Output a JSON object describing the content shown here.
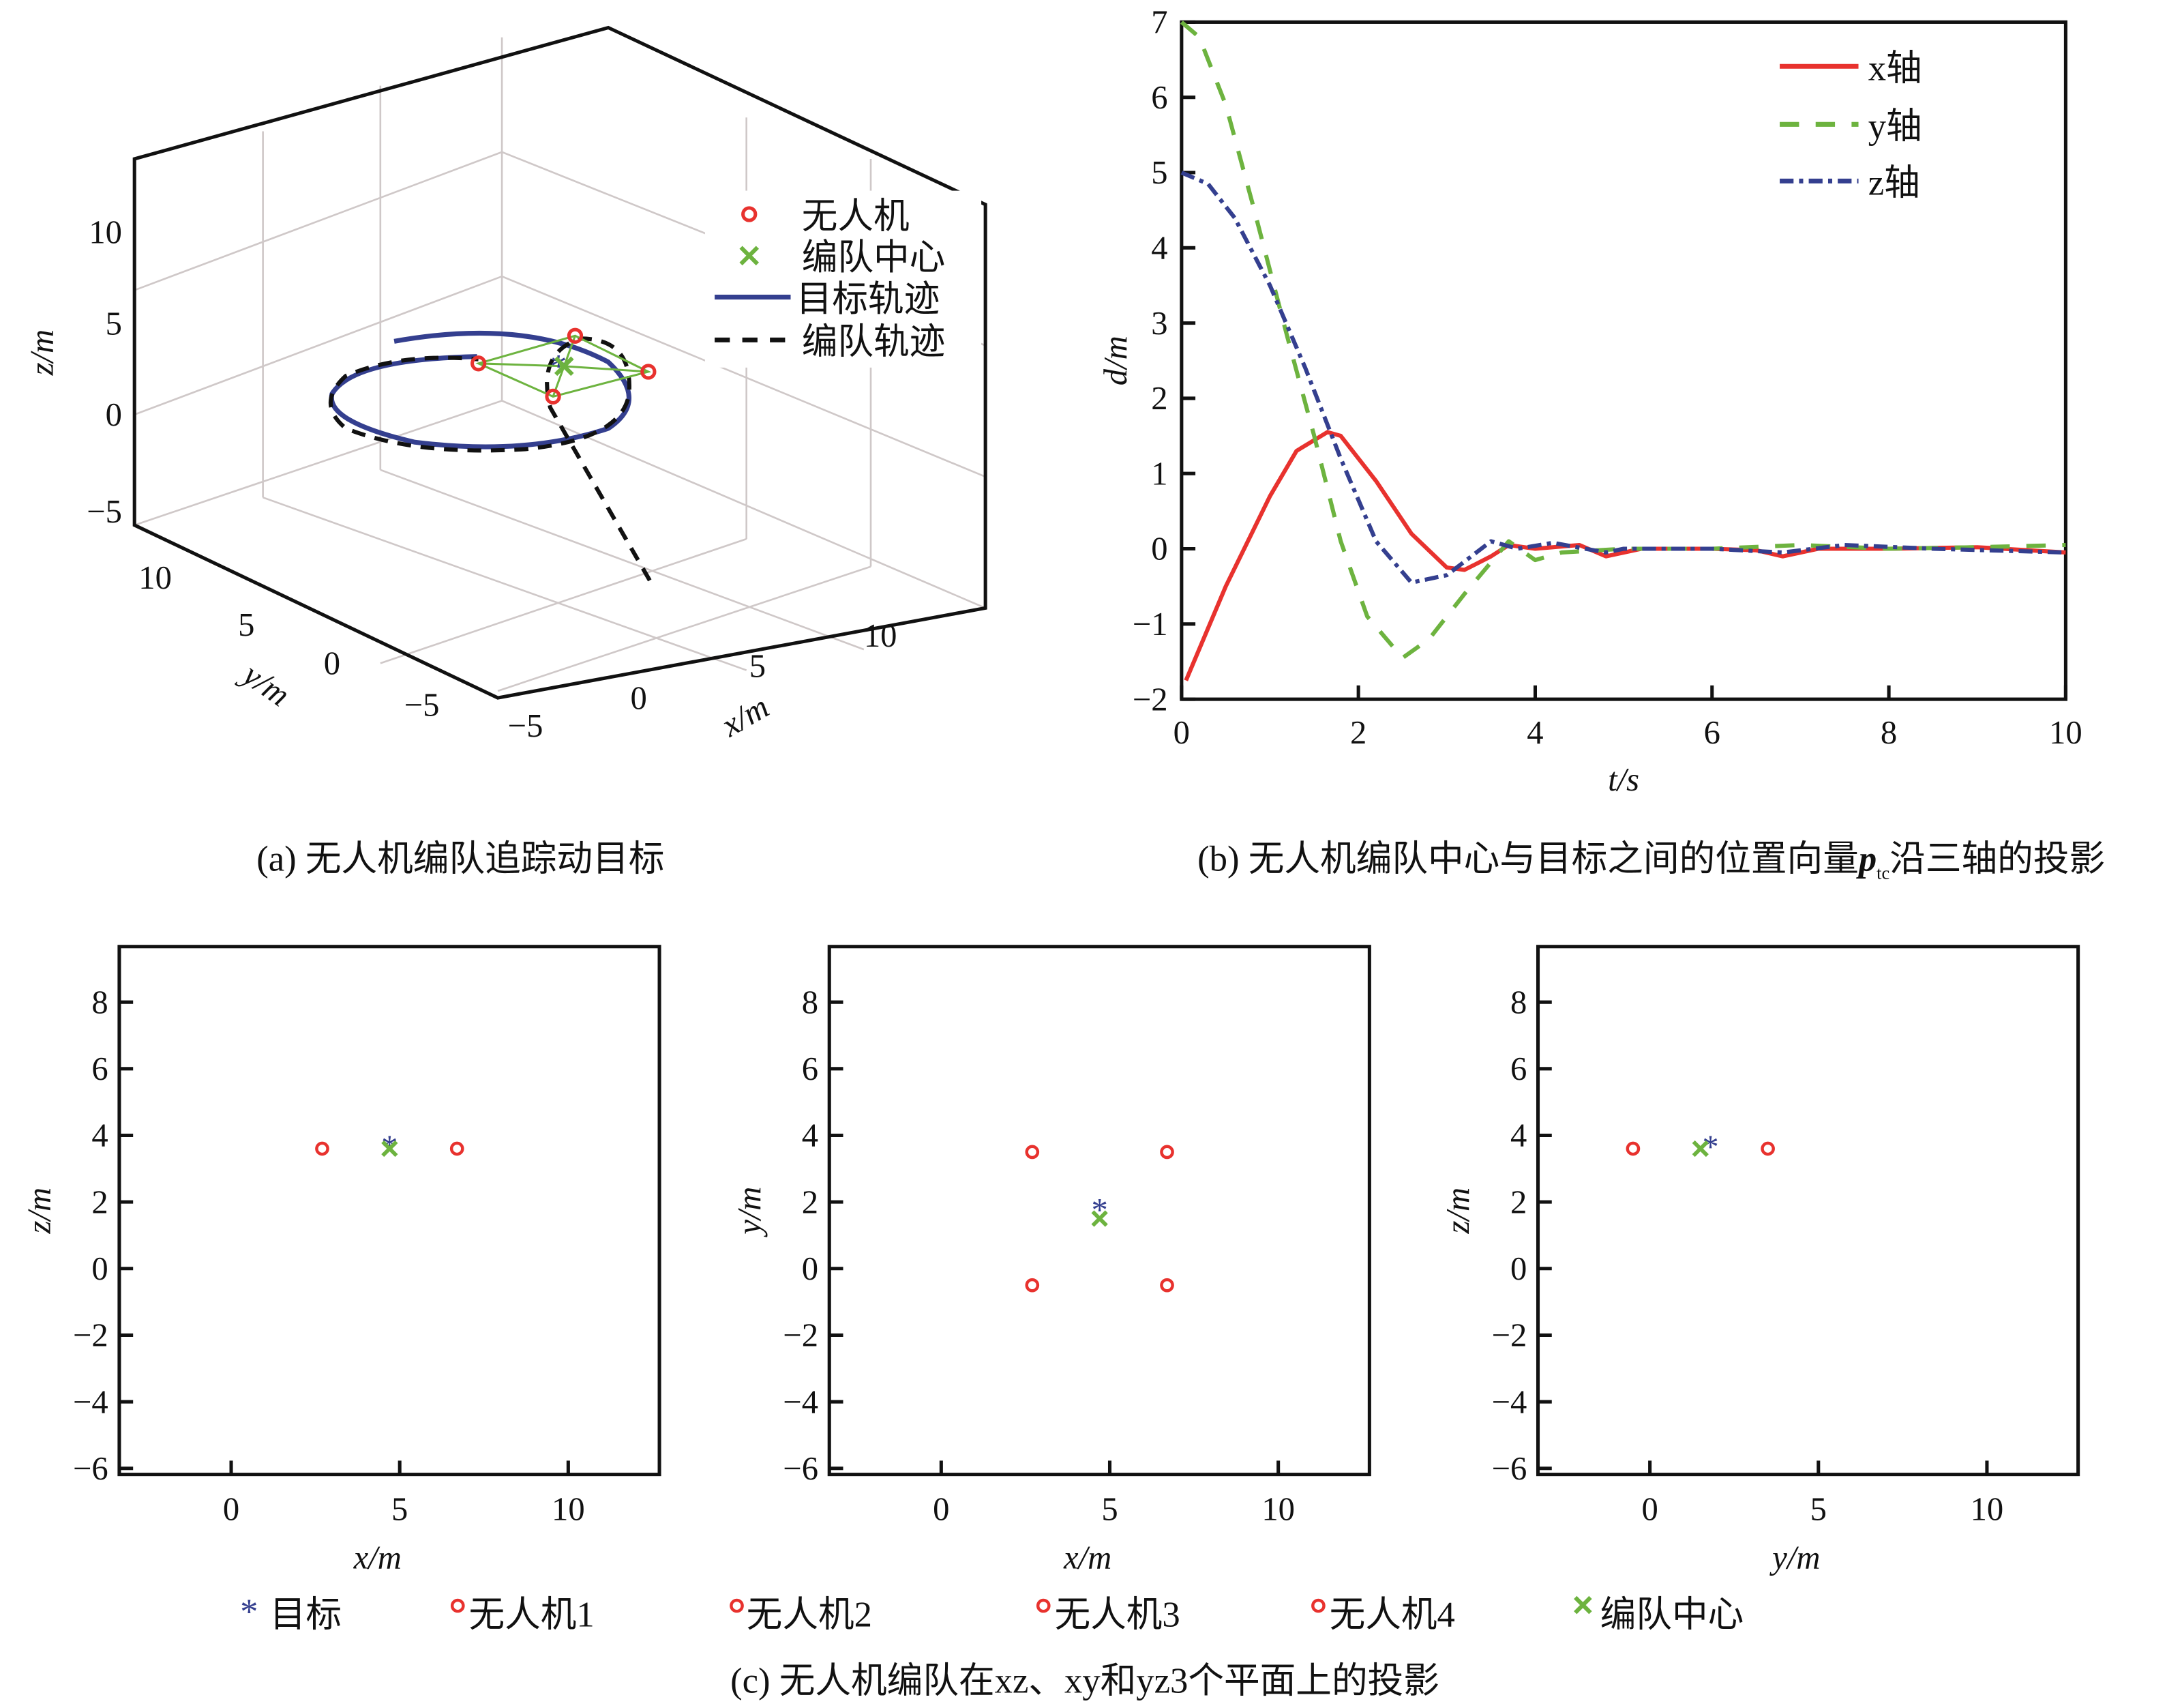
{
  "colors": {
    "uav": "#e8322e",
    "center": "#6db33f",
    "target": "#343f8f",
    "formation_path": "#111111"
  },
  "panel_a": {
    "caption": "(a) 无人机编队追踪动目标",
    "z_label": "z/m",
    "y_label": "y/m",
    "x_label": "x/m",
    "z_ticks": [
      "10",
      "5",
      "0",
      "−5"
    ],
    "y_ticks": [
      "10",
      "5",
      "0",
      "−5"
    ],
    "x_ticks": [
      "−5",
      "0",
      "5",
      "10"
    ],
    "legend": [
      "无人机",
      "编队中心",
      "目标轨迹",
      "编队轨迹"
    ]
  },
  "panel_b": {
    "caption_prefix": "(b) 无人机编队中心与目标之间的位置向量",
    "caption_symbol": "p",
    "caption_sub": "tc",
    "caption_suffix": "沿三轴的投影"
  },
  "panel_c": {
    "caption": "(c) 无人机编队在xz、xy和yz3个平面上的投影",
    "legend": [
      "目标",
      "无人机1",
      "无人机2",
      "无人机3",
      "无人机4",
      "编队中心"
    ]
  },
  "chart_data": [
    {
      "type": "line",
      "title": "",
      "xlabel": "t/s",
      "ylabel": "d/m",
      "xlim": [
        0,
        10
      ],
      "ylim": [
        -2,
        7
      ],
      "xticks": [
        "0",
        "2",
        "4",
        "6",
        "8",
        "10"
      ],
      "yticks": [
        "7",
        "6",
        "5",
        "4",
        "3",
        "2",
        "1",
        "0",
        "−1",
        "−2"
      ],
      "legend_position": "top-right",
      "series": [
        {
          "name": "x轴",
          "style": "solid",
          "color": "#e8322e",
          "x": [
            0.05,
            0.5,
            1.0,
            1.3,
            1.65,
            1.8,
            2.2,
            2.6,
            3.0,
            3.2,
            3.5,
            3.7,
            4.0,
            4.5,
            4.8,
            5.2,
            6.0,
            6.5,
            6.8,
            7.2,
            8.0,
            9.0,
            10.0
          ],
          "y": [
            -1.75,
            -0.5,
            0.7,
            1.3,
            1.55,
            1.5,
            0.9,
            0.2,
            -0.25,
            -0.28,
            -0.1,
            0.05,
            0.0,
            0.05,
            -0.1,
            0.0,
            0.0,
            -0.02,
            -0.1,
            0.0,
            0.0,
            0.02,
            -0.05
          ]
        },
        {
          "name": "y轴",
          "style": "dashed",
          "color": "#6db33f",
          "x": [
            0.0,
            0.2,
            0.5,
            0.8,
            1.2,
            1.5,
            1.8,
            2.1,
            2.5,
            2.8,
            3.2,
            3.7,
            4.0,
            4.3,
            5.0,
            6.0,
            7.0,
            8.0,
            9.0,
            10.0
          ],
          "y": [
            7.0,
            6.8,
            5.9,
            4.6,
            2.8,
            1.5,
            0.1,
            -0.9,
            -1.45,
            -1.2,
            -0.6,
            0.1,
            -0.15,
            -0.05,
            0.0,
            0.0,
            0.05,
            0.0,
            0.02,
            0.05
          ]
        },
        {
          "name": "z轴",
          "style": "dashdot",
          "color": "#343f8f",
          "x": [
            0.0,
            0.3,
            0.6,
            1.0,
            1.4,
            1.8,
            2.2,
            2.6,
            3.0,
            3.5,
            3.8,
            4.2,
            4.8,
            5.0,
            6.0,
            6.8,
            7.5,
            8.5,
            10.0
          ],
          "y": [
            5.0,
            4.85,
            4.4,
            3.5,
            2.4,
            1.2,
            0.1,
            -0.45,
            -0.35,
            0.1,
            0.0,
            0.08,
            -0.05,
            0.0,
            0.0,
            -0.05,
            0.05,
            0.0,
            -0.05
          ]
        }
      ]
    },
    {
      "type": "scatter",
      "xlabel": "x/m",
      "ylabel": "z/m",
      "xlim": [
        -3.3,
        12.8
      ],
      "ylim": [
        -6.2,
        9.6
      ],
      "xticks": [
        "0",
        "5",
        "10"
      ],
      "yticks": [
        "8",
        "6",
        "4",
        "2",
        "0",
        "−2",
        "−4",
        "−6"
      ],
      "target": [
        4.7,
        3.7
      ],
      "center": [
        4.7,
        3.6
      ],
      "uavs": [
        [
          2.7,
          3.6
        ],
        [
          6.7,
          3.6
        ]
      ]
    },
    {
      "type": "scatter",
      "xlabel": "x/m",
      "ylabel": "y/m",
      "xlim": [
        -3.3,
        12.8
      ],
      "ylim": [
        -6.2,
        9.6
      ],
      "xticks": [
        "0",
        "5",
        "10"
      ],
      "yticks": [
        "8",
        "6",
        "4",
        "2",
        "0",
        "−2",
        "−4",
        "−6"
      ],
      "target": [
        4.7,
        1.8
      ],
      "center": [
        4.7,
        1.5
      ],
      "uavs": [
        [
          2.7,
          3.5
        ],
        [
          6.7,
          3.5
        ],
        [
          2.7,
          -0.5
        ],
        [
          6.7,
          -0.5
        ]
      ]
    },
    {
      "type": "scatter",
      "xlabel": "y/m",
      "ylabel": "z/m",
      "xlim": [
        -3.3,
        12.8
      ],
      "ylim": [
        -6.2,
        9.6
      ],
      "xticks": [
        "0",
        "5",
        "10"
      ],
      "yticks": [
        "8",
        "6",
        "4",
        "2",
        "0",
        "−2",
        "−4",
        "−6"
      ],
      "target": [
        1.8,
        3.7
      ],
      "center": [
        1.5,
        3.6
      ],
      "uavs": [
        [
          -0.5,
          3.6
        ],
        [
          3.5,
          3.6
        ]
      ]
    }
  ]
}
